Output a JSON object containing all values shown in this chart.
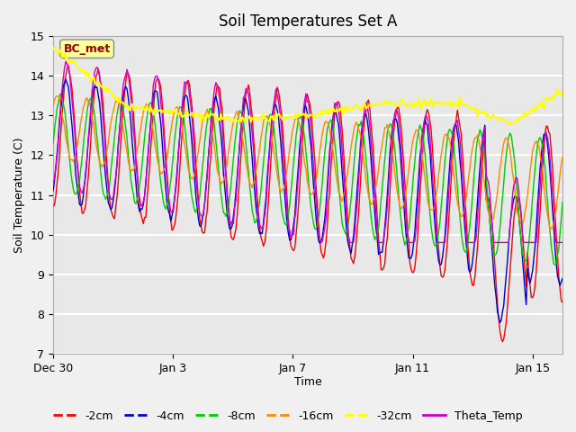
{
  "title": "Soil Temperatures Set A",
  "xlabel": "Time",
  "ylabel": "Soil Temperature (C)",
  "ylim": [
    7.0,
    15.0
  ],
  "yticks": [
    7.0,
    8.0,
    9.0,
    10.0,
    11.0,
    12.0,
    13.0,
    14.0,
    15.0
  ],
  "xtick_labels": [
    "Dec 30",
    "Jan 3",
    "Jan 7",
    "Jan 11",
    "Jan 15"
  ],
  "xtick_positions": [
    0,
    4,
    8,
    12,
    16
  ],
  "background_color": "#e8e8e8",
  "plot_bg_color": "#e8e8e8",
  "legend_items": [
    "-2cm",
    "-4cm",
    "-8cm",
    "-16cm",
    "-32cm",
    "Theta_Temp"
  ],
  "line_colors": [
    "#ff0000",
    "#0000cc",
    "#00cc00",
    "#ff8800",
    "#ffff00",
    "#cc00cc"
  ],
  "annotation_text": "BC_met",
  "annotation_color": "#990000",
  "annotation_bg": "#ffff99",
  "n_days": 17,
  "samples_per_day": 24
}
